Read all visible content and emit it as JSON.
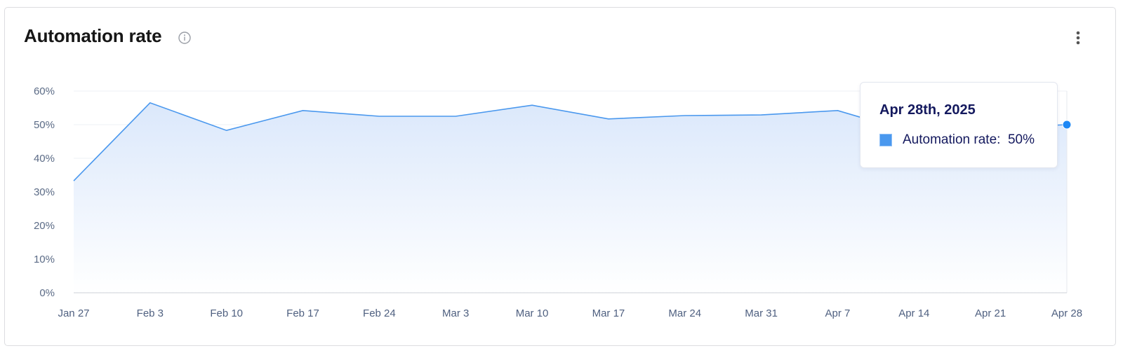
{
  "card": {
    "title": "Automation rate",
    "info_icon": "info-icon",
    "menu_icon": "more-vertical-icon"
  },
  "tooltip": {
    "date": "Apr 28th, 2025",
    "series_label": "Automation rate:",
    "value": "50%",
    "swatch_color": "#4a98ee"
  },
  "colors": {
    "line": "#4a98ee",
    "area_top": "#dbe8fb",
    "area_bottom": "#ffffff",
    "marker": "#1e88f5",
    "grid": "#eef0f4",
    "axis": "#d6d9df"
  },
  "chart_data": {
    "type": "area",
    "title": "Automation rate",
    "xlabel": "",
    "ylabel": "",
    "categories": [
      "Jan 27",
      "Feb 3",
      "Feb 10",
      "Feb 17",
      "Feb 24",
      "Mar 3",
      "Mar 10",
      "Mar 17",
      "Mar 24",
      "Mar 31",
      "Apr 7",
      "Apr 14",
      "Apr 21",
      "Apr 28"
    ],
    "series": [
      {
        "name": "Automation rate",
        "values": [
          33.3,
          56.5,
          48.3,
          54.2,
          52.5,
          52.5,
          55.8,
          51.7,
          52.7,
          52.9,
          54.2,
          47.5,
          49,
          50
        ]
      }
    ],
    "yticks": [
      "0%",
      "10%",
      "20%",
      "30%",
      "40%",
      "50%",
      "60%"
    ],
    "ylim": [
      0,
      60
    ],
    "grid": true,
    "legend": "none",
    "highlighted_point": {
      "category": "Apr 28",
      "value": 50
    }
  }
}
